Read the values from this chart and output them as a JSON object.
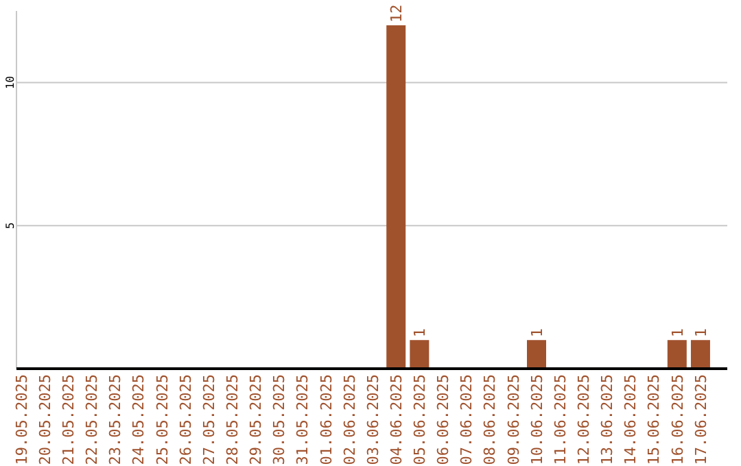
{
  "chart_data": {
    "type": "bar",
    "categories": [
      "19.05.2025",
      "20.05.2025",
      "21.05.2025",
      "22.05.2025",
      "23.05.2025",
      "24.05.2025",
      "25.05.2025",
      "26.05.2025",
      "27.05.2025",
      "28.05.2025",
      "29.05.2025",
      "30.05.2025",
      "31.05.2025",
      "01.06.2025",
      "02.06.2025",
      "03.06.2025",
      "04.06.2025",
      "05.06.2025",
      "06.06.2025",
      "07.06.2025",
      "08.06.2025",
      "09.06.2025",
      "10.06.2025",
      "11.06.2025",
      "12.06.2025",
      "13.06.2025",
      "14.06.2025",
      "15.06.2025",
      "16.06.2025",
      "17.06.2025"
    ],
    "values": [
      0,
      0,
      0,
      0,
      0,
      0,
      0,
      0,
      0,
      0,
      0,
      0,
      0,
      0,
      0,
      0,
      12,
      1,
      0,
      0,
      0,
      0,
      1,
      0,
      0,
      0,
      0,
      0,
      1,
      1
    ],
    "value_labels": [
      null,
      null,
      null,
      null,
      null,
      null,
      null,
      null,
      null,
      null,
      null,
      null,
      null,
      null,
      null,
      null,
      "12",
      "1",
      null,
      null,
      null,
      null,
      "1",
      null,
      null,
      null,
      null,
      null,
      "1",
      "1"
    ],
    "color": "#a0522d",
    "ylim": [
      0,
      12.5
    ],
    "yticks": [
      5,
      10
    ],
    "grid": "y"
  }
}
